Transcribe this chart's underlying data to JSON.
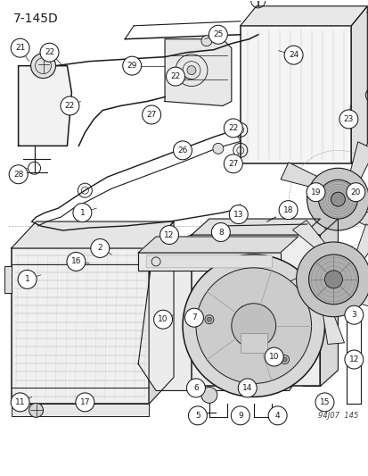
{
  "title": "7-145D",
  "fig_width": 4.14,
  "fig_height": 5.33,
  "dpi": 100,
  "bg_color": "#ffffff",
  "line_color": "#1a1a1a",
  "watermark": "94J07  145",
  "circle_r": 0.018,
  "font_size": 7.0
}
